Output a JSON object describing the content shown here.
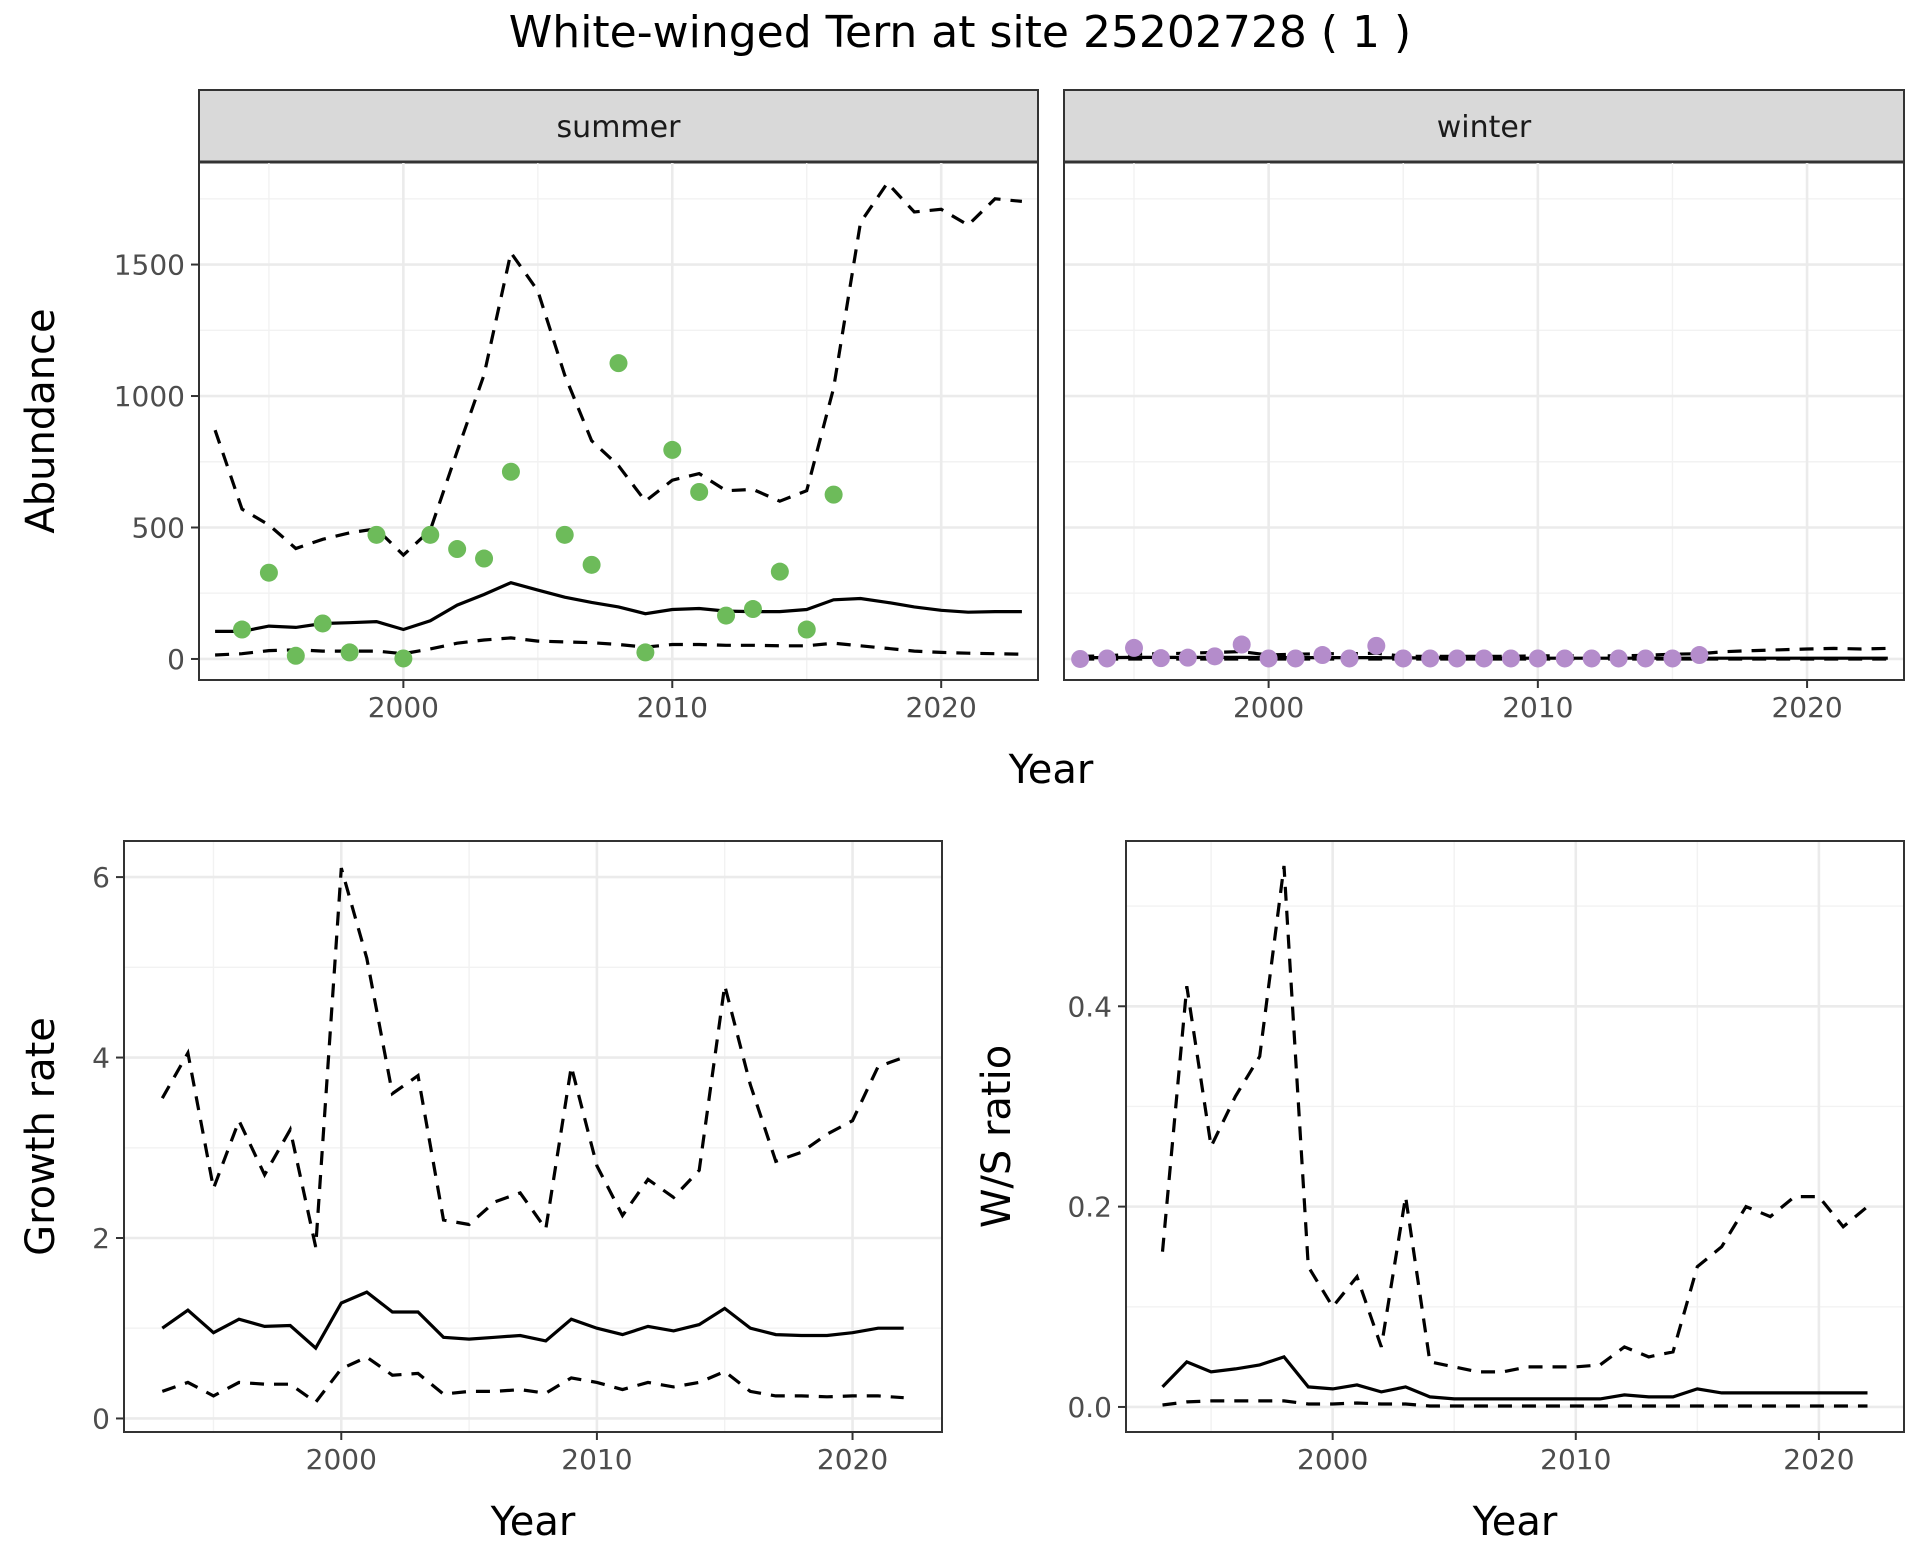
{
  "title": "White-winged Tern at site 25202728 ( 1 )",
  "colors": {
    "summer_points": "#6dbb5a",
    "winter_points": "#b48ccb"
  },
  "chart_data": [
    {
      "id": "abundance",
      "type": "line",
      "facets": [
        "summer",
        "winter"
      ],
      "xlabel": "Year",
      "ylabel": "Abundance",
      "xlim": [
        1992.4,
        2023.6
      ],
      "ylim": [
        -80,
        1890
      ],
      "xticks": [
        2000,
        2010,
        2020
      ],
      "yticks": [
        0,
        500,
        1000,
        1500
      ],
      "years": [
        1993,
        1994,
        1995,
        1996,
        1997,
        1998,
        1999,
        2000,
        2001,
        2002,
        2003,
        2004,
        2005,
        2006,
        2007,
        2008,
        2009,
        2010,
        2011,
        2012,
        2013,
        2014,
        2015,
        2016,
        2017,
        2018,
        2019,
        2020,
        2021,
        2022,
        2023
      ],
      "summer": {
        "estimate": [
          105,
          105,
          125,
          120,
          135,
          138,
          142,
          112,
          145,
          205,
          245,
          290,
          262,
          235,
          215,
          198,
          172,
          188,
          192,
          182,
          180,
          180,
          188,
          225,
          230,
          215,
          198,
          185,
          178,
          180,
          180
        ],
        "upper": [
          870,
          570,
          510,
          420,
          455,
          480,
          495,
          395,
          490,
          790,
          1080,
          1545,
          1400,
          1080,
          830,
          735,
          600,
          680,
          705,
          640,
          645,
          600,
          640,
          1030,
          1660,
          1810,
          1700,
          1710,
          1650,
          1750,
          1740
        ],
        "lower": [
          15,
          20,
          32,
          35,
          30,
          30,
          30,
          20,
          38,
          60,
          72,
          80,
          68,
          65,
          62,
          55,
          45,
          55,
          55,
          52,
          52,
          50,
          50,
          60,
          50,
          40,
          30,
          25,
          22,
          20,
          18
        ],
        "observed_x": [
          1994,
          1995,
          1996,
          1997,
          1998,
          1999,
          2000,
          2001,
          2002,
          2003,
          2004,
          2006,
          2007,
          2008,
          2009,
          2010,
          2011,
          2012,
          2013,
          2014,
          2015,
          2016
        ],
        "observed_y": [
          112,
          328,
          12,
          135,
          25,
          472,
          2,
          472,
          418,
          382,
          712,
          472,
          358,
          1125,
          25,
          795,
          635,
          165,
          190,
          332,
          112,
          625
        ]
      },
      "winter": {
        "estimate": [
          5,
          5,
          6,
          6,
          6,
          6,
          6,
          5,
          5,
          5,
          5,
          5,
          4,
          4,
          4,
          3,
          3,
          3,
          3,
          3,
          3,
          3,
          3,
          3,
          3,
          3,
          3,
          3,
          3,
          3,
          3
        ],
        "upper": [
          10,
          12,
          18,
          20,
          22,
          25,
          28,
          15,
          18,
          20,
          20,
          22,
          10,
          10,
          10,
          10,
          10,
          12,
          12,
          12,
          12,
          14,
          18,
          20,
          28,
          32,
          35,
          38,
          40,
          38,
          40
        ],
        "lower": [
          0,
          0,
          0,
          0,
          0,
          0,
          0,
          0,
          0,
          0,
          0,
          0,
          0,
          0,
          0,
          0,
          0,
          0,
          0,
          0,
          0,
          0,
          0,
          0,
          0,
          0,
          0,
          0,
          0,
          0,
          0
        ],
        "observed_x": [
          1993,
          1994,
          1995,
          1996,
          1997,
          1998,
          1999,
          2000,
          2001,
          2002,
          2003,
          2004,
          2005,
          2006,
          2007,
          2008,
          2009,
          2010,
          2011,
          2012,
          2013,
          2014,
          2015,
          2016
        ],
        "observed_y": [
          0,
          2,
          42,
          3,
          5,
          10,
          55,
          2,
          2,
          15,
          2,
          50,
          2,
          2,
          2,
          2,
          2,
          2,
          2,
          2,
          2,
          2,
          2,
          15
        ]
      }
    },
    {
      "id": "growth",
      "type": "line",
      "xlabel": "Year",
      "ylabel": "Growth rate",
      "xlim": [
        1991.5,
        2023.5
      ],
      "ylim": [
        -0.15,
        6.4
      ],
      "xticks": [
        2000,
        2010,
        2020
      ],
      "yticks": [
        0,
        2,
        4,
        6
      ],
      "years": [
        1993,
        1994,
        1995,
        1996,
        1997,
        1998,
        1999,
        2000,
        2001,
        2002,
        2003,
        2004,
        2005,
        2006,
        2007,
        2008,
        2009,
        2010,
        2011,
        2012,
        2013,
        2014,
        2015,
        2016,
        2017,
        2018,
        2019,
        2020,
        2021,
        2022
      ],
      "estimate": [
        1.0,
        1.2,
        0.95,
        1.1,
        1.02,
        1.03,
        0.78,
        1.28,
        1.4,
        1.18,
        1.18,
        0.9,
        0.88,
        0.9,
        0.92,
        0.86,
        1.1,
        1.0,
        0.93,
        1.02,
        0.97,
        1.04,
        1.22,
        1.0,
        0.93,
        0.92,
        0.92,
        0.95,
        1.0,
        1.0
      ],
      "upper": [
        3.55,
        4.05,
        2.55,
        3.3,
        2.7,
        3.2,
        1.9,
        6.1,
        5.1,
        3.6,
        3.8,
        2.2,
        2.15,
        2.4,
        2.5,
        2.1,
        3.9,
        2.8,
        2.25,
        2.65,
        2.45,
        2.75,
        4.8,
        3.7,
        2.85,
        2.95,
        3.15,
        3.3,
        3.9,
        4.0
      ],
      "lower": [
        0.3,
        0.4,
        0.25,
        0.4,
        0.38,
        0.38,
        0.18,
        0.55,
        0.68,
        0.48,
        0.5,
        0.27,
        0.3,
        0.3,
        0.32,
        0.28,
        0.45,
        0.4,
        0.32,
        0.4,
        0.35,
        0.4,
        0.52,
        0.3,
        0.25,
        0.25,
        0.24,
        0.25,
        0.25,
        0.23
      ]
    },
    {
      "id": "ratio",
      "type": "line",
      "xlabel": "Year",
      "ylabel": "W/S ratio",
      "xlim": [
        1991.5,
        2023.5
      ],
      "ylim": [
        -0.025,
        0.565
      ],
      "xticks": [
        2000,
        2010,
        2020
      ],
      "yticks": [
        0.0,
        0.2,
        0.4
      ],
      "ytick_labels": [
        "0.0",
        "0.2",
        "0.4"
      ],
      "years": [
        1993,
        1994,
        1995,
        1996,
        1997,
        1998,
        1999,
        2000,
        2001,
        2002,
        2003,
        2004,
        2005,
        2006,
        2007,
        2008,
        2009,
        2010,
        2011,
        2012,
        2013,
        2014,
        2015,
        2016,
        2017,
        2018,
        2019,
        2020,
        2021,
        2022
      ],
      "estimate": [
        0.02,
        0.045,
        0.035,
        0.038,
        0.042,
        0.05,
        0.02,
        0.018,
        0.022,
        0.015,
        0.02,
        0.01,
        0.008,
        0.008,
        0.008,
        0.008,
        0.008,
        0.008,
        0.008,
        0.012,
        0.01,
        0.01,
        0.018,
        0.014,
        0.014,
        0.014,
        0.014,
        0.014,
        0.014,
        0.014
      ],
      "upper": [
        0.155,
        0.42,
        0.26,
        0.31,
        0.35,
        0.54,
        0.14,
        0.1,
        0.13,
        0.06,
        0.21,
        0.045,
        0.04,
        0.035,
        0.035,
        0.04,
        0.04,
        0.04,
        0.042,
        0.06,
        0.05,
        0.055,
        0.14,
        0.16,
        0.2,
        0.19,
        0.21,
        0.21,
        0.18,
        0.2
      ],
      "lower": [
        0.002,
        0.005,
        0.006,
        0.006,
        0.006,
        0.006,
        0.003,
        0.003,
        0.004,
        0.003,
        0.003,
        0.001,
        0.001,
        0.001,
        0.001,
        0.001,
        0.001,
        0.001,
        0.001,
        0.001,
        0.001,
        0.001,
        0.001,
        0.001,
        0.001,
        0.001,
        0.001,
        0.001,
        0.001,
        0.001
      ]
    }
  ]
}
